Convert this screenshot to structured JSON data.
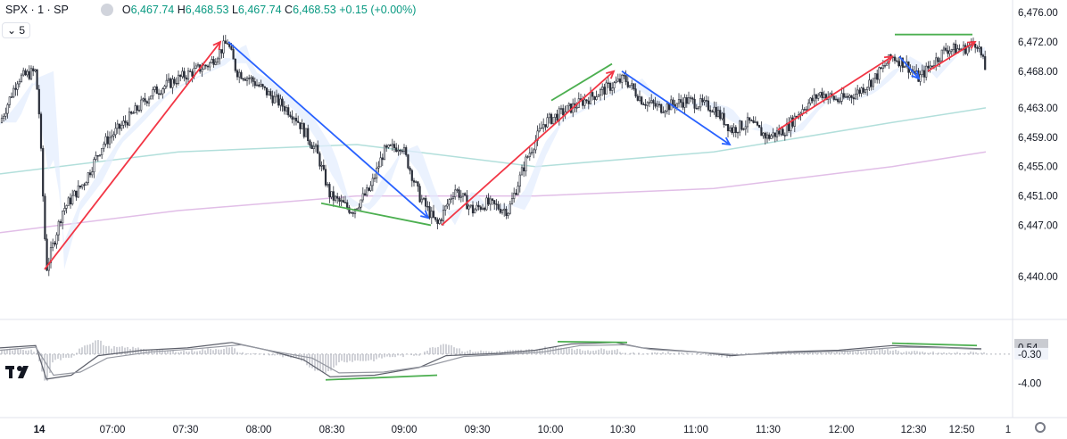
{
  "legend": {
    "symbol": "SPX · 1 · SP",
    "o_label": "O",
    "o": "6,467.74",
    "h_label": "H",
    "h": "6,468.53",
    "l_label": "L",
    "l": "6,467.74",
    "c_label": "C",
    "c": "6,468.53",
    "change": "+0.15 (+0.00%)"
  },
  "interval_label": "5",
  "icons": {
    "visibility": "eye-icon",
    "collapse": "chevron-down-icon",
    "settings": "gear-icon",
    "logo": "tradingview-logo-icon"
  },
  "colors": {
    "up": "#089981",
    "down": "#f23645",
    "candle": "#2a2e39",
    "blue_arrow": "#2962ff",
    "red_arrow": "#f23645",
    "green_line": "#4caf50",
    "ma_teal": "#b2dfdb",
    "ma_purple": "#e1bee7"
  },
  "chart_data": [
    {
      "type": "candlestick",
      "price_axis": {
        "ticks": [
          "6,476.00",
          "6,472.00",
          "6,468.00",
          "6,463.00",
          "6,459.00",
          "6,455.00",
          "6,451.00",
          "6,447.00",
          "6,440.00"
        ],
        "ylim": [
          6440,
          6476
        ]
      },
      "time_axis": {
        "ticks": [
          "14",
          "07:00",
          "07:30",
          "08:00",
          "08:30",
          "09:00",
          "09:30",
          "10:00",
          "10:30",
          "11:00",
          "11:30",
          "12:00",
          "12:30",
          "12:50",
          "1"
        ]
      },
      "price_path": [
        [
          0,
          6461
        ],
        [
          20,
          6467
        ],
        [
          40,
          6468
        ],
        [
          44,
          6462
        ],
        [
          52,
          6441
        ],
        [
          70,
          6449
        ],
        [
          95,
          6453
        ],
        [
          115,
          6458
        ],
        [
          140,
          6461
        ],
        [
          170,
          6465
        ],
        [
          200,
          6467
        ],
        [
          235,
          6469
        ],
        [
          255,
          6472
        ],
        [
          265,
          6468
        ],
        [
          280,
          6467
        ],
        [
          300,
          6465
        ],
        [
          330,
          6462
        ],
        [
          355,
          6457
        ],
        [
          370,
          6451
        ],
        [
          395,
          6449
        ],
        [
          415,
          6452
        ],
        [
          430,
          6457
        ],
        [
          450,
          6458
        ],
        [
          470,
          6451
        ],
        [
          490,
          6447
        ],
        [
          510,
          6452
        ],
        [
          530,
          6449
        ],
        [
          545,
          6450
        ],
        [
          570,
          6449
        ],
        [
          590,
          6456
        ],
        [
          610,
          6461
        ],
        [
          640,
          6463
        ],
        [
          670,
          6465
        ],
        [
          700,
          6467
        ],
        [
          720,
          6464
        ],
        [
          740,
          6463
        ],
        [
          770,
          6464
        ],
        [
          800,
          6463
        ],
        [
          820,
          6460
        ],
        [
          840,
          6461
        ],
        [
          860,
          6459
        ],
        [
          880,
          6460
        ],
        [
          900,
          6463
        ],
        [
          920,
          6465
        ],
        [
          940,
          6464
        ],
        [
          960,
          6465
        ],
        [
          980,
          6467
        ],
        [
          1000,
          6470
        ],
        [
          1015,
          6469
        ],
        [
          1030,
          6467
        ],
        [
          1045,
          6469
        ],
        [
          1060,
          6471
        ],
        [
          1080,
          6471
        ],
        [
          1095,
          6472
        ],
        [
          1105,
          6468
        ]
      ],
      "moving_averages": [
        {
          "name": "",
          "color": "#b2dfdb",
          "path": [
            [
              0,
              6454
            ],
            [
              200,
              6457
            ],
            [
              400,
              6458
            ],
            [
              600,
              6455
            ],
            [
              800,
              6457
            ],
            [
              1000,
              6461
            ],
            [
              1105,
              6463
            ]
          ]
        },
        {
          "name": "",
          "color": "#e1bee7",
          "path": [
            [
              0,
              6446
            ],
            [
              200,
              6449
            ],
            [
              400,
              6451
            ],
            [
              600,
              6451
            ],
            [
              800,
              6452
            ],
            [
              1000,
              6455
            ],
            [
              1105,
              6457
            ]
          ]
        }
      ],
      "annotations": {
        "red_arrows": [
          [
            [
              50,
              6441
            ],
            [
              247,
              6472
            ]
          ],
          [
            [
              495,
              6447
            ],
            [
              688,
              6468
            ]
          ],
          [
            [
              872,
              6460
            ],
            [
              1000,
              6470
            ]
          ],
          [
            [
              1040,
              6468
            ],
            [
              1093,
              6472
            ]
          ]
        ],
        "blue_arrows": [
          [
            [
              256,
              6472
            ],
            [
              480,
              6448
            ]
          ],
          [
            [
              697,
              6468
            ],
            [
              818,
              6458
            ]
          ],
          [
            [
              1008,
              6470
            ],
            [
              1030,
              6467
            ]
          ]
        ],
        "green_lines": [
          [
            [
              360,
              6450
            ],
            [
              483,
              6447
            ]
          ],
          [
            [
              618,
              6464
            ],
            [
              686,
              6469
            ]
          ],
          [
            [
              1003,
              6473
            ],
            [
              1090,
              6473
            ]
          ]
        ]
      }
    },
    {
      "type": "line",
      "indicator_axis": {
        "ticks": [
          "0.84",
          "0.54",
          "-0.30",
          "-4.00"
        ],
        "ylim": [
          -5,
          3
        ]
      },
      "series": [
        {
          "name": "",
          "path": [
            [
              0,
              0.5
            ],
            [
              40,
              0.8
            ],
            [
              52,
              -3.5
            ],
            [
              80,
              -3
            ],
            [
              110,
              -0.5
            ],
            [
              160,
              0.2
            ],
            [
              210,
              0.5
            ],
            [
              260,
              1.2
            ],
            [
              300,
              0.2
            ],
            [
              340,
              -1
            ],
            [
              370,
              -3.2
            ],
            [
              420,
              -3
            ],
            [
              470,
              -2
            ],
            [
              500,
              -0.5
            ],
            [
              560,
              -0.2
            ],
            [
              600,
              0.2
            ],
            [
              640,
              1
            ],
            [
              690,
              1.2
            ],
            [
              720,
              0.5
            ],
            [
              780,
              0
            ],
            [
              820,
              -0.5
            ],
            [
              880,
              0
            ],
            [
              940,
              0.2
            ],
            [
              1000,
              0.8
            ],
            [
              1050,
              0.6
            ],
            [
              1100,
              0.4
            ]
          ]
        },
        {
          "name": "",
          "path": [
            [
              0,
              0.2
            ],
            [
              40,
              0.6
            ],
            [
              60,
              -3
            ],
            [
              90,
              -2.6
            ],
            [
              120,
              -0.8
            ],
            [
              170,
              0
            ],
            [
              220,
              0.4
            ],
            [
              270,
              0.9
            ],
            [
              310,
              0
            ],
            [
              350,
              -0.8
            ],
            [
              380,
              -2.7
            ],
            [
              430,
              -2.6
            ],
            [
              480,
              -1.8
            ],
            [
              520,
              -0.6
            ],
            [
              570,
              -0.3
            ],
            [
              610,
              0
            ],
            [
              650,
              0.8
            ],
            [
              700,
              0.9
            ],
            [
              730,
              0.3
            ],
            [
              790,
              -0.1
            ],
            [
              830,
              -0.4
            ],
            [
              890,
              -0.1
            ],
            [
              950,
              0.1
            ],
            [
              1010,
              0.6
            ],
            [
              1060,
              0.5
            ],
            [
              1100,
              0.3
            ]
          ]
        }
      ],
      "annotations": {
        "green_lines": [
          [
            [
              365,
              -3.6
            ],
            [
              490,
              -3
            ]
          ],
          [
            [
              625,
              1.3
            ],
            [
              703,
              1.2
            ]
          ],
          [
            [
              1000,
              1.1
            ],
            [
              1095,
              0.8
            ]
          ]
        ]
      }
    }
  ]
}
